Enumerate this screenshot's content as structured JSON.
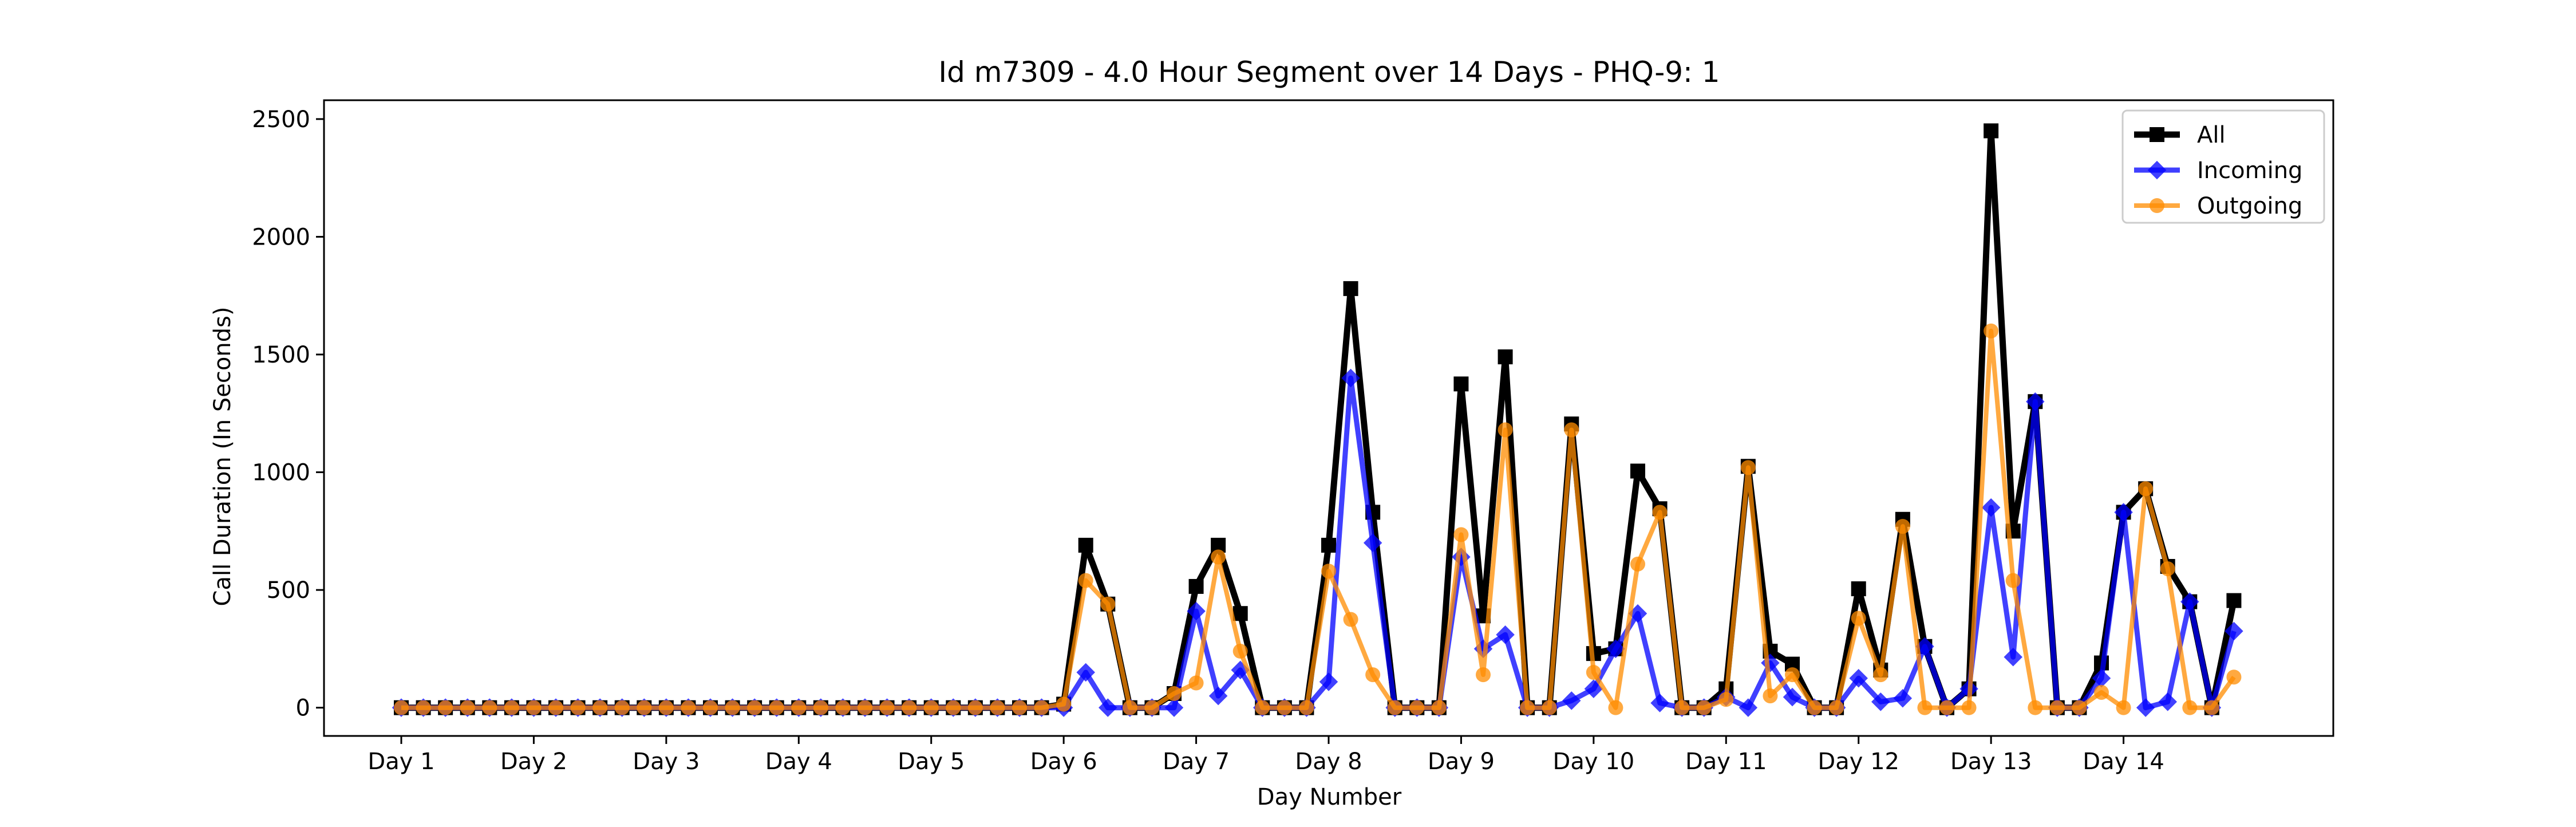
{
  "chart_data": {
    "type": "line",
    "title": "Id m7309 - 4.0 Hour Segment over 14 Days - PHQ-9: 1",
    "xlabel": "Day Number",
    "ylabel": "Call Duration (In Seconds)",
    "ylim": [
      -120,
      2580
    ],
    "xlim": [
      -3.5,
      87.5
    ],
    "grid": false,
    "legend_position": "top-right",
    "x_ticks": [
      {
        "value": 0,
        "label": "Day 1"
      },
      {
        "value": 6,
        "label": "Day 2"
      },
      {
        "value": 12,
        "label": "Day 3"
      },
      {
        "value": 18,
        "label": "Day 4"
      },
      {
        "value": 24,
        "label": "Day 5"
      },
      {
        "value": 30,
        "label": "Day 6"
      },
      {
        "value": 36,
        "label": "Day 7"
      },
      {
        "value": 42,
        "label": "Day 8"
      },
      {
        "value": 48,
        "label": "Day 9"
      },
      {
        "value": 54,
        "label": "Day 10"
      },
      {
        "value": 60,
        "label": "Day 11"
      },
      {
        "value": 66,
        "label": "Day 12"
      },
      {
        "value": 72,
        "label": "Day 13"
      },
      {
        "value": 78,
        "label": "Day 14"
      }
    ],
    "y_ticks": [
      0,
      500,
      1000,
      1500,
      2000,
      2500
    ],
    "series": [
      {
        "name": "All",
        "color": "#000000",
        "marker": "square",
        "values": [
          0,
          0,
          0,
          0,
          0,
          0,
          0,
          0,
          0,
          0,
          0,
          0,
          0,
          0,
          0,
          0,
          0,
          0,
          0,
          0,
          0,
          0,
          0,
          0,
          0,
          0,
          0,
          0,
          0,
          0,
          15,
          690,
          440,
          0,
          0,
          60,
          515,
          690,
          400,
          0,
          0,
          0,
          690,
          1780,
          830,
          0,
          0,
          0,
          1375,
          390,
          1490,
          0,
          0,
          1205,
          230,
          250,
          1005,
          845,
          0,
          0,
          80,
          1025,
          240,
          185,
          0,
          0,
          505,
          160,
          800,
          260,
          0,
          80,
          2450,
          750,
          1300,
          0,
          0,
          190,
          830,
          930,
          600,
          450,
          0,
          455
        ]
      },
      {
        "name": "Incoming",
        "color": "#0000ff",
        "marker": "diamond",
        "values": [
          0,
          0,
          0,
          0,
          0,
          0,
          0,
          0,
          0,
          0,
          0,
          0,
          0,
          0,
          0,
          0,
          0,
          0,
          0,
          0,
          0,
          0,
          0,
          0,
          0,
          0,
          0,
          0,
          0,
          0,
          0,
          150,
          0,
          0,
          0,
          0,
          410,
          50,
          160,
          0,
          0,
          0,
          110,
          1400,
          700,
          0,
          0,
          0,
          640,
          250,
          310,
          0,
          0,
          30,
          80,
          250,
          400,
          20,
          0,
          0,
          45,
          0,
          190,
          45,
          0,
          0,
          125,
          25,
          40,
          260,
          0,
          80,
          850,
          215,
          1300,
          0,
          0,
          125,
          830,
          0,
          25,
          450,
          0,
          325
        ]
      },
      {
        "name": "Outgoing",
        "color": "#ff8c00",
        "marker": "circle",
        "values": [
          0,
          0,
          0,
          0,
          0,
          0,
          0,
          0,
          0,
          0,
          0,
          0,
          0,
          0,
          0,
          0,
          0,
          0,
          0,
          0,
          0,
          0,
          0,
          0,
          0,
          0,
          0,
          0,
          0,
          0,
          15,
          540,
          440,
          0,
          0,
          60,
          105,
          640,
          240,
          0,
          0,
          0,
          580,
          375,
          140,
          0,
          0,
          0,
          735,
          140,
          1180,
          0,
          0,
          1180,
          150,
          0,
          610,
          830,
          0,
          0,
          35,
          1020,
          50,
          140,
          0,
          0,
          380,
          140,
          770,
          0,
          0,
          0,
          1600,
          540,
          0,
          0,
          0,
          65,
          0,
          930,
          590,
          0,
          0,
          130
        ]
      }
    ]
  }
}
